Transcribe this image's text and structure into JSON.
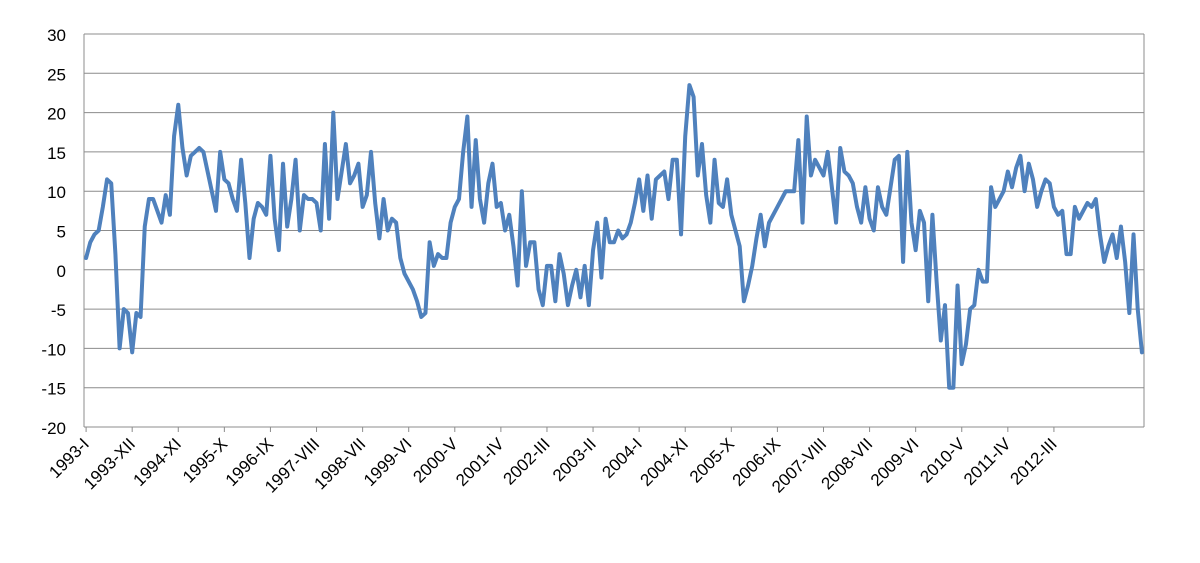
{
  "chart_data": {
    "type": "line",
    "title": "",
    "xlabel": "",
    "ylabel": "",
    "ylim": [
      -20,
      30
    ],
    "yticks": [
      -20,
      -15,
      -10,
      -5,
      0,
      5,
      10,
      15,
      20,
      25,
      30
    ],
    "x_tick_labels": [
      "1993-I",
      "1993-XII",
      "1994-XI",
      "1995-X",
      "1996-IX",
      "1997-VIII",
      "1998-VII",
      "1999-VI",
      "2000-V",
      "2001-IV",
      "2002-III",
      "2003-II",
      "2004-I",
      "2004-XI",
      "2005-X",
      "2006-IX",
      "2007-VIII",
      "2008-VII",
      "2009-VI",
      "2010-V",
      "2011-IV",
      "2012-III"
    ],
    "x_tick_interval_months": 11,
    "grid": "horizontal",
    "legend": "none",
    "series": [
      {
        "color": "#4f81bd",
        "values": [
          1.5,
          3.5,
          4.5,
          5,
          8,
          11.5,
          11,
          2,
          -10,
          -5,
          -5.5,
          -10.5,
          -5.5,
          -6,
          5.5,
          9,
          9,
          7.5,
          6,
          9.5,
          7,
          17,
          21,
          15.5,
          12,
          14.5,
          15,
          15.5,
          15,
          12.5,
          10,
          7.5,
          15,
          11.5,
          11,
          9,
          7.5,
          14,
          8.5,
          1.5,
          6.5,
          8.5,
          8,
          7,
          14.5,
          6.5,
          2.5,
          13.5,
          5.5,
          9,
          14,
          5,
          9.5,
          9,
          9,
          8.5,
          5,
          16,
          6.5,
          20,
          9,
          12.5,
          16,
          11,
          12,
          13.5,
          8,
          9.5,
          15,
          8.5,
          4,
          9,
          5,
          6.5,
          6,
          1.5,
          -0.5,
          -1.5,
          -2.5,
          -4,
          -6,
          -5.5,
          3.5,
          0.5,
          2,
          1.5,
          1.5,
          6,
          8,
          9,
          15,
          19.5,
          8,
          16.5,
          9,
          6,
          11,
          13.5,
          8,
          8.5,
          5,
          7,
          3,
          -2,
          10,
          0.5,
          3.5,
          3.5,
          -2.5,
          -4.5,
          0.5,
          0.5,
          -4,
          2,
          -0.5,
          -4.5,
          -2,
          0,
          -3.5,
          0.5,
          -4.5,
          2.5,
          6,
          -1,
          6.5,
          3.5,
          3.5,
          5,
          4,
          4.5,
          6,
          8.5,
          11.5,
          7.5,
          12,
          6.5,
          11.5,
          12,
          12.5,
          9,
          14,
          14,
          4.5,
          17,
          23.5,
          22,
          12,
          16,
          9.5,
          6,
          14,
          8.5,
          8,
          11.5,
          7,
          5,
          3,
          -4,
          -2,
          0.5,
          4,
          7,
          3,
          6,
          7,
          8,
          9,
          10,
          10,
          10,
          16.5,
          6,
          19.5,
          12,
          14,
          13,
          12,
          15,
          10.5,
          6,
          15.5,
          12.5,
          12,
          11,
          8,
          6,
          10.5,
          6.5,
          5,
          10.5,
          8,
          7,
          10.5,
          14,
          14.5,
          1,
          15,
          6,
          2.5,
          7.5,
          6,
          -4,
          7,
          -1.5,
          -9,
          -4.5,
          -15,
          -15,
          -2,
          -12,
          -9.5,
          -5,
          -4.5,
          0,
          -1.5,
          -1.5,
          10.5,
          8,
          9,
          10,
          12.5,
          10.5,
          13,
          14.5,
          10,
          13.5,
          11.5,
          8,
          10,
          11.5,
          11,
          8,
          7,
          7.5,
          2,
          2,
          8,
          6.5,
          7.5,
          8.5,
          8,
          9,
          4.5,
          1,
          3,
          4.5,
          1.5,
          5.5,
          1,
          -5.5,
          4.5,
          -5,
          -10.5
        ]
      }
    ]
  }
}
